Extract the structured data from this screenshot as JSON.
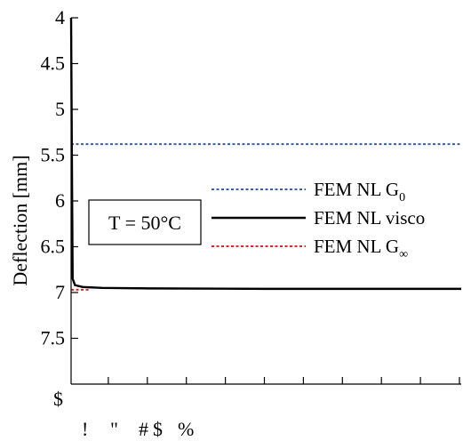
{
  "chart_data": {
    "type": "line",
    "ylabel": "Deflection [mm]",
    "xlabel": "",
    "y_inverted": true,
    "ylim": [
      4,
      8
    ],
    "y_ticks": [
      "4",
      "4.5",
      "5",
      "5.5",
      "6",
      "6.5",
      "7",
      "7.5"
    ],
    "x_tick_count": 10,
    "x_tick_glyphs": [
      "!",
      "\"",
      "#",
      "$",
      "%"
    ],
    "x_axis_glyph": "$",
    "annotation": "T = 50°C",
    "legend_position": "center-right",
    "series": [
      {
        "name": "FEM NL G",
        "subscript": "0",
        "style": "dotted",
        "color": "#3a5fa8",
        "values": [
          [
            0,
            5.38
          ],
          [
            1,
            5.38
          ]
        ]
      },
      {
        "name": "FEM NL visco",
        "subscript": "",
        "style": "solid",
        "color": "#000000",
        "values": [
          [
            0,
            4.0
          ],
          [
            0.002,
            5.5
          ],
          [
            0.004,
            6.85
          ],
          [
            0.01,
            6.92
          ],
          [
            0.03,
            6.94
          ],
          [
            0.08,
            6.95
          ],
          [
            0.2,
            6.955
          ],
          [
            0.5,
            6.96
          ],
          [
            1,
            6.96
          ]
        ]
      },
      {
        "name": "FEM NL G",
        "subscript": "∞",
        "style": "dotted",
        "color": "#e8202a",
        "values": [
          [
            0,
            6.97
          ],
          [
            0.05,
            6.97
          ]
        ]
      }
    ]
  }
}
